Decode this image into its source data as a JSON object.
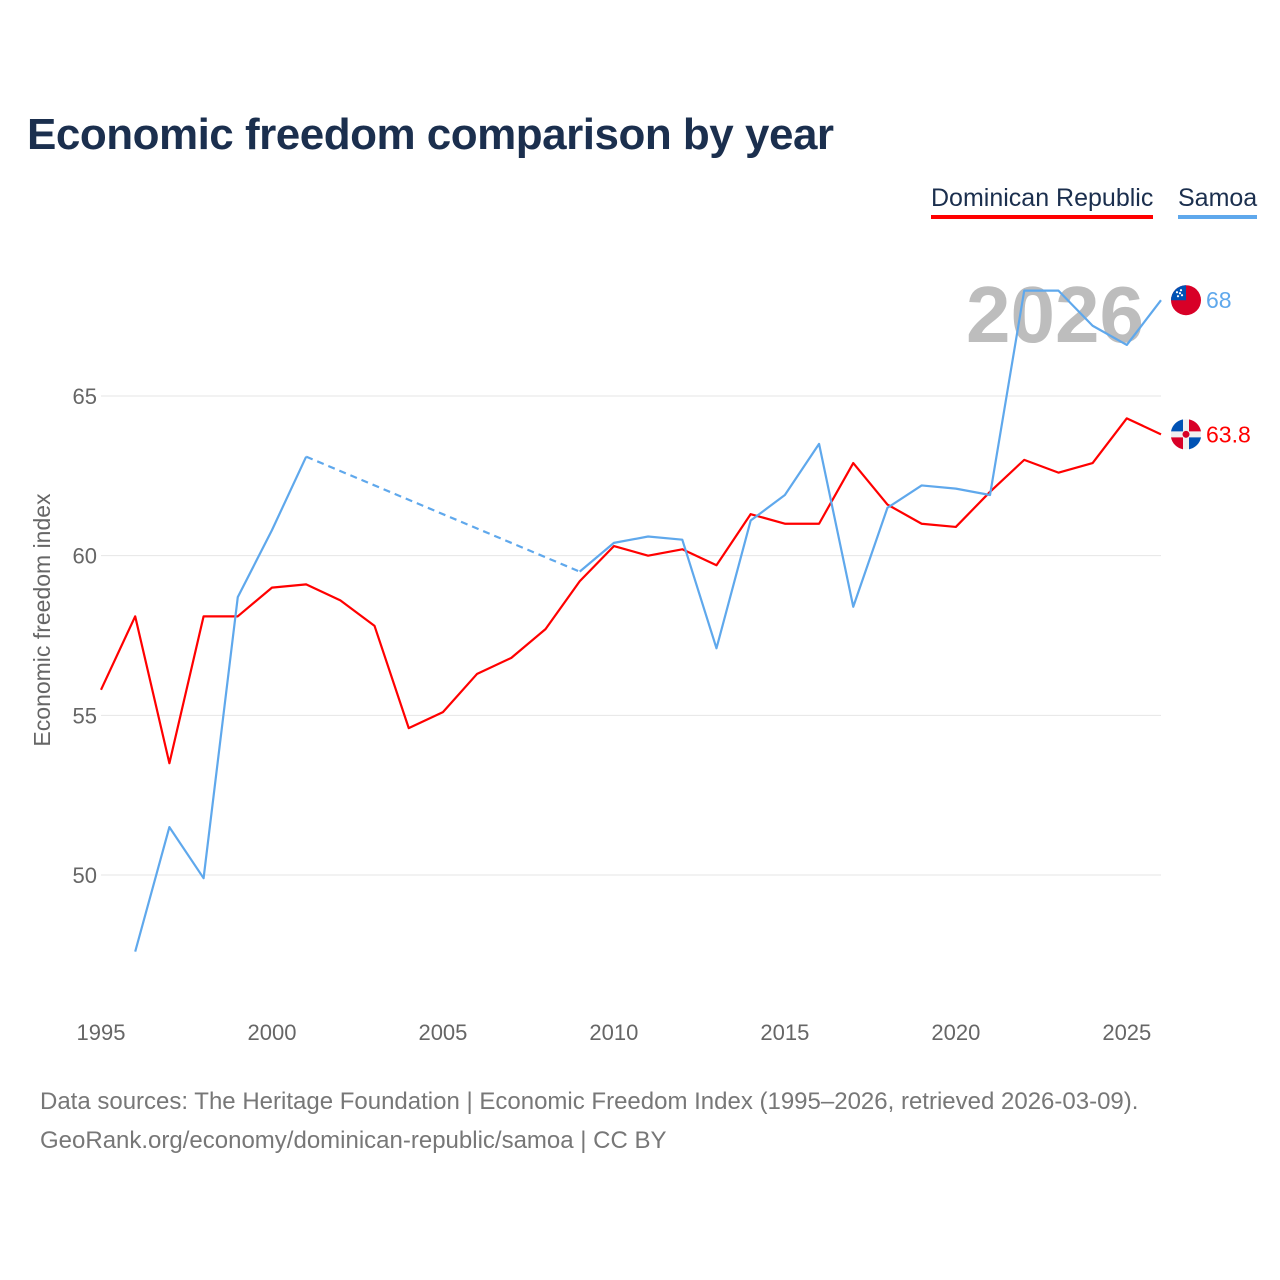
{
  "chart_data": {
    "type": "line",
    "title": "Economic freedom comparison by year",
    "xlabel": "",
    "ylabel": "Economic freedom index",
    "xlim": [
      1995,
      2026
    ],
    "ylim": [
      46.5,
      69
    ],
    "xticks": [
      1995,
      2000,
      2005,
      2010,
      2015,
      2020,
      2025
    ],
    "yticks": [
      50,
      55,
      60,
      65
    ],
    "grid": true,
    "legend_position": "top-right",
    "year_watermark": "2026",
    "x": [
      1995,
      1996,
      1997,
      1998,
      1999,
      2000,
      2001,
      2002,
      2003,
      2004,
      2005,
      2006,
      2007,
      2008,
      2009,
      2010,
      2011,
      2012,
      2013,
      2014,
      2015,
      2016,
      2017,
      2018,
      2019,
      2020,
      2021,
      2022,
      2023,
      2024,
      2025,
      2026
    ],
    "series": [
      {
        "name": "Dominican Republic",
        "color": "#ff0000",
        "end_label": "63.8",
        "flag": "dominican-republic-flag",
        "values": [
          55.8,
          58.1,
          53.5,
          58.1,
          58.1,
          59.0,
          59.1,
          58.6,
          57.8,
          54.6,
          55.1,
          56.3,
          56.8,
          57.7,
          59.2,
          60.3,
          60.0,
          60.2,
          59.7,
          61.3,
          61.0,
          61.0,
          62.9,
          61.6,
          61.0,
          60.9,
          62.0,
          63.0,
          62.6,
          62.9,
          64.3,
          63.8
        ]
      },
      {
        "name": "Samoa",
        "color": "#5fa8ec",
        "end_label": "68",
        "flag": "samoa-flag",
        "values": [
          null,
          47.6,
          51.5,
          49.9,
          58.7,
          60.8,
          63.1,
          null,
          null,
          null,
          null,
          null,
          null,
          null,
          59.5,
          60.4,
          60.6,
          60.5,
          57.1,
          61.1,
          61.9,
          63.5,
          58.4,
          61.5,
          62.2,
          62.1,
          61.9,
          68.3,
          68.3,
          67.2,
          66.6,
          68.0
        ]
      }
    ]
  },
  "footer": {
    "line1": "Data sources: The Heritage Foundation | Economic Freedom Index (1995–2026, retrieved 2026-03-09).",
    "line2": "GeoRank.org/economy/dominican-republic/samoa | CC BY"
  }
}
